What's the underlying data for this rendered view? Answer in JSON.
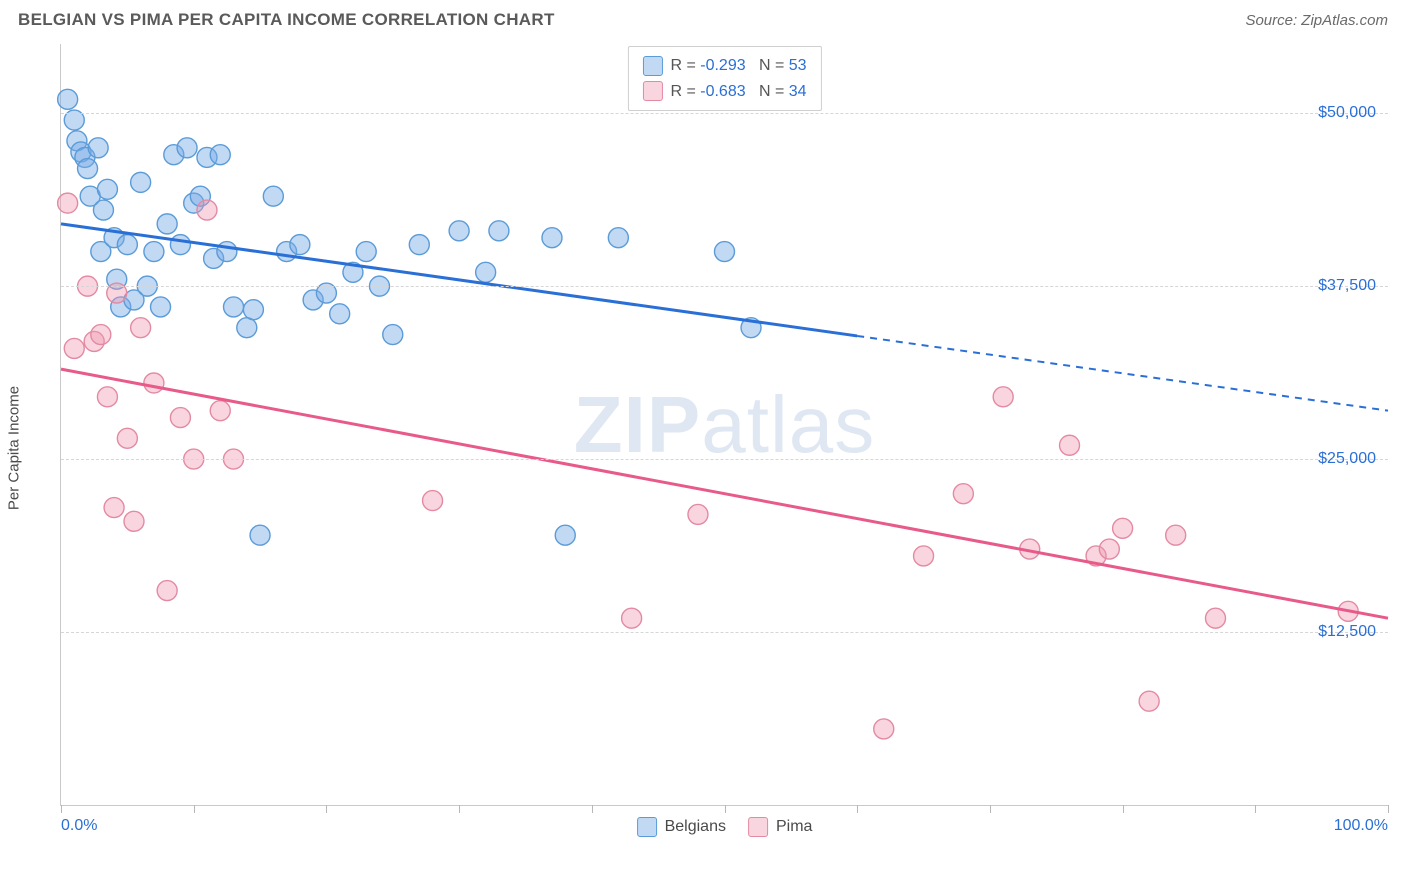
{
  "title": "BELGIAN VS PIMA PER CAPITA INCOME CORRELATION CHART",
  "source": "Source: ZipAtlas.com",
  "watermark": {
    "bold": "ZIP",
    "rest": "atlas"
  },
  "y_axis": {
    "label": "Per Capita Income",
    "min": 0,
    "max": 55000,
    "ticks": [
      12500,
      25000,
      37500,
      50000
    ],
    "tick_labels": [
      "$12,500",
      "$25,000",
      "$37,500",
      "$50,000"
    ],
    "label_color": "#2a6fd6"
  },
  "x_axis": {
    "min": 0,
    "max": 100,
    "ticks": [
      0,
      10,
      20,
      30,
      40,
      50,
      60,
      70,
      80,
      90,
      100
    ],
    "end_labels": {
      "left": "0.0%",
      "right": "100.0%"
    },
    "label_color": "#2a6fd6"
  },
  "series": [
    {
      "name": "Belgians",
      "color_fill": "rgba(120,170,230,0.45)",
      "color_stroke": "#5a9bd8",
      "trend_color": "#2a6fd6",
      "marker_radius": 10,
      "R": "-0.293",
      "N": "53",
      "trend": {
        "y_at_x0": 42000,
        "y_at_x100": 28500,
        "solid_until_x": 60
      },
      "points": [
        [
          0.5,
          51000
        ],
        [
          1,
          49500
        ],
        [
          1.2,
          48000
        ],
        [
          1.5,
          47200
        ],
        [
          1.8,
          46800
        ],
        [
          2,
          46000
        ],
        [
          2.2,
          44000
        ],
        [
          2.8,
          47500
        ],
        [
          3,
          40000
        ],
        [
          3.2,
          43000
        ],
        [
          3.5,
          44500
        ],
        [
          4,
          41000
        ],
        [
          4.2,
          38000
        ],
        [
          4.5,
          36000
        ],
        [
          5,
          40500
        ],
        [
          5.5,
          36500
        ],
        [
          6,
          45000
        ],
        [
          6.5,
          37500
        ],
        [
          7,
          40000
        ],
        [
          7.5,
          36000
        ],
        [
          8,
          42000
        ],
        [
          8.5,
          47000
        ],
        [
          9,
          40500
        ],
        [
          9.5,
          47500
        ],
        [
          10,
          43500
        ],
        [
          10.5,
          44000
        ],
        [
          11,
          46800
        ],
        [
          11.5,
          39500
        ],
        [
          12,
          47000
        ],
        [
          12.5,
          40000
        ],
        [
          13,
          36000
        ],
        [
          14,
          34500
        ],
        [
          14.5,
          35800
        ],
        [
          15,
          19500
        ],
        [
          16,
          44000
        ],
        [
          17,
          40000
        ],
        [
          18,
          40500
        ],
        [
          19,
          36500
        ],
        [
          20,
          37000
        ],
        [
          21,
          35500
        ],
        [
          22,
          38500
        ],
        [
          23,
          40000
        ],
        [
          24,
          37500
        ],
        [
          25,
          34000
        ],
        [
          27,
          40500
        ],
        [
          30,
          41500
        ],
        [
          32,
          38500
        ],
        [
          33,
          41500
        ],
        [
          37,
          41000
        ],
        [
          42,
          41000
        ],
        [
          50,
          40000
        ],
        [
          52,
          34500
        ],
        [
          38,
          19500
        ]
      ]
    },
    {
      "name": "Pima",
      "color_fill": "rgba(240,150,175,0.40)",
      "color_stroke": "#e38aa3",
      "trend_color": "#e75a8a",
      "marker_radius": 10,
      "R": "-0.683",
      "N": "34",
      "trend": {
        "y_at_x0": 31500,
        "y_at_x100": 13500,
        "solid_until_x": 100
      },
      "points": [
        [
          0.5,
          43500
        ],
        [
          1,
          33000
        ],
        [
          2,
          37500
        ],
        [
          2.5,
          33500
        ],
        [
          3,
          34000
        ],
        [
          3.5,
          29500
        ],
        [
          4,
          21500
        ],
        [
          4.2,
          37000
        ],
        [
          5,
          26500
        ],
        [
          5.5,
          20500
        ],
        [
          6,
          34500
        ],
        [
          7,
          30500
        ],
        [
          8,
          15500
        ],
        [
          9,
          28000
        ],
        [
          10,
          25000
        ],
        [
          11,
          43000
        ],
        [
          12,
          28500
        ],
        [
          13,
          25000
        ],
        [
          28,
          22000
        ],
        [
          43,
          13500
        ],
        [
          48,
          21000
        ],
        [
          62,
          5500
        ],
        [
          65,
          18000
        ],
        [
          68,
          22500
        ],
        [
          71,
          29500
        ],
        [
          73,
          18500
        ],
        [
          76,
          26000
        ],
        [
          78,
          18000
        ],
        [
          79,
          18500
        ],
        [
          80,
          20000
        ],
        [
          82,
          7500
        ],
        [
          84,
          19500
        ],
        [
          87,
          13500
        ],
        [
          97,
          14000
        ]
      ]
    }
  ],
  "legend_box": {
    "r_label": "R =",
    "n_label": "N ="
  },
  "colors": {
    "grid": "#d6d6d6",
    "axis": "#c9c9c9",
    "title": "#5a5a5a",
    "background": "#ffffff"
  }
}
